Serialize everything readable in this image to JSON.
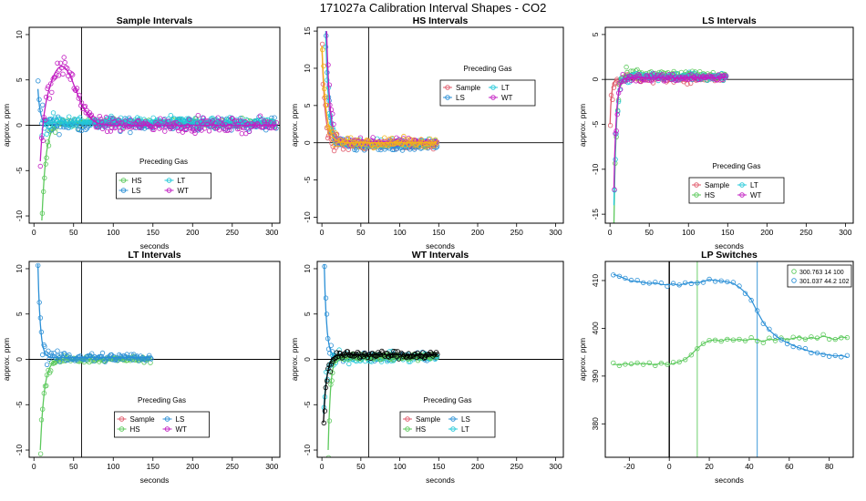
{
  "figure": {
    "title": "171027a   Calibration Interval Shapes - CO2"
  },
  "colors": {
    "Sample": "#e05a6b",
    "HS": "#5cc95c",
    "LS": "#2a8fd6",
    "LT": "#22c8d8",
    "WT": "#c21ec2",
    "HSmix": "#f2b21a",
    "black": "#000000"
  },
  "chart_data": [
    {
      "type": "scatter",
      "title": "Sample Intervals",
      "xlabel": "seconds",
      "ylabel": "approx. ppm",
      "xlim": [
        -6,
        310
      ],
      "ylim": [
        -10.8,
        10.8
      ],
      "xticks": [
        0,
        50,
        100,
        150,
        200,
        250,
        300
      ],
      "yticks": [
        -10,
        -5,
        0,
        5,
        10
      ],
      "vline": [
        60
      ],
      "hline": [
        0
      ],
      "legend": {
        "title": "Preceding Gas",
        "entries": [
          "HS",
          "LT",
          "LS",
          "WT"
        ],
        "position": "bottom-center"
      },
      "series": [
        {
          "name": "HS",
          "color": "HS",
          "start": -10.5,
          "settle": 0.25,
          "tau": 5,
          "noise": 0.45,
          "tmax": 305,
          "t0": 10
        },
        {
          "name": "LS",
          "color": "LS",
          "start": 4,
          "settle": 0.1,
          "tau": 3,
          "noise": 0.7,
          "tmax": 305,
          "t0": 5
        },
        {
          "name": "LT",
          "color": "LT",
          "start": -0.5,
          "settle": 0.35,
          "tau": 4,
          "noise": 0.55,
          "tmax": 305,
          "t0": 10
        },
        {
          "name": "WT",
          "color": "WT",
          "start": -6,
          "settle": 0,
          "tau": 4,
          "noise": 0.75,
          "tmax": 305,
          "t0": 8,
          "bump": {
            "center": 35,
            "height": 6.5,
            "width": 25
          }
        }
      ]
    },
    {
      "type": "scatter",
      "title": "HS Intervals",
      "xlabel": "seconds",
      "ylabel": "approx. ppm",
      "xlim": [
        -6,
        310
      ],
      "ylim": [
        -10.8,
        15.5
      ],
      "xticks": [
        0,
        50,
        100,
        150,
        200,
        250,
        300
      ],
      "yticks": [
        -10,
        -5,
        0,
        5,
        10,
        15
      ],
      "vline": [
        60
      ],
      "hline": [
        0
      ],
      "legend": {
        "title": "Preceding Gas",
        "entries": [
          "Sample",
          "LT",
          "LS",
          "WT"
        ],
        "position": "top-right"
      },
      "series": [
        {
          "name": "Sample",
          "color": "Sample",
          "start": 13,
          "settle": -0.3,
          "tau": 4,
          "noise": 0.55,
          "tmax": 148,
          "t0": 0
        },
        {
          "name": "LS",
          "color": "LS",
          "start": 15,
          "settle": -0.5,
          "tau": 4,
          "noise": 0.55,
          "tmax": 148,
          "t0": 5
        },
        {
          "name": "LT",
          "color": "LT",
          "start": 14,
          "settle": 0,
          "tau": 4,
          "noise": 0.5,
          "tmax": 148,
          "t0": 5
        },
        {
          "name": "WT",
          "color": "WT",
          "start": 15,
          "settle": 0.1,
          "tau": 4,
          "noise": 0.5,
          "tmax": 148,
          "t0": 6
        },
        {
          "name": "Mix",
          "color": "HSmix",
          "start": 13,
          "settle": 0,
          "tau": 5,
          "noise": 0.6,
          "tmax": 148,
          "t0": 0
        }
      ]
    },
    {
      "type": "scatter",
      "title": "LS Intervals",
      "xlabel": "seconds",
      "ylabel": "approx. ppm",
      "xlim": [
        -6,
        310
      ],
      "ylim": [
        -16,
        5.8
      ],
      "xticks": [
        0,
        50,
        100,
        150,
        200,
        250,
        300
      ],
      "yticks": [
        -15,
        -10,
        -5,
        0,
        5
      ],
      "vline": [],
      "hline": [
        0
      ],
      "legend": {
        "title": "Preceding Gas",
        "entries": [
          "Sample",
          "LT",
          "HS",
          "WT"
        ],
        "position": "bottom-right"
      },
      "series": [
        {
          "name": "Sample",
          "color": "Sample",
          "start": -5,
          "settle": 0.1,
          "tau": 2,
          "noise": 0.5,
          "tmax": 148,
          "t0": 0
        },
        {
          "name": "HS",
          "color": "HS",
          "start": -16,
          "settle": 0.5,
          "tau": 3,
          "noise": 0.45,
          "tmax": 148,
          "t0": 5
        },
        {
          "name": "LT",
          "color": "LT",
          "start": -14,
          "settle": 0.3,
          "tau": 3,
          "noise": 0.45,
          "tmax": 148,
          "t0": 5
        },
        {
          "name": "WT",
          "color": "WT",
          "start": -12,
          "settle": 0.2,
          "tau": 3,
          "noise": 0.45,
          "tmax": 148,
          "t0": 5
        }
      ]
    },
    {
      "type": "scatter",
      "title": "LT Intervals",
      "xlabel": "seconds",
      "ylabel": "approx. ppm",
      "xlim": [
        -6,
        310
      ],
      "ylim": [
        -10.8,
        10.8
      ],
      "xticks": [
        0,
        50,
        100,
        150,
        200,
        250,
        300
      ],
      "yticks": [
        -10,
        -5,
        0,
        5,
        10
      ],
      "vline": [
        60
      ],
      "hline": [
        0
      ],
      "legend": {
        "title": "Preceding Gas",
        "entries": [
          "Sample",
          "LS",
          "HS",
          "WT"
        ],
        "position": "bottom-right"
      },
      "series": [
        {
          "name": "HS",
          "color": "HS",
          "start": -10,
          "settle": 0,
          "tau": 5,
          "noise": 0.3,
          "tmax": 148,
          "t0": 8
        },
        {
          "name": "LS",
          "color": "LS",
          "start": 10.5,
          "settle": 0.2,
          "tau": 3,
          "noise": 0.55,
          "tmax": 148,
          "t0": 5
        }
      ]
    },
    {
      "type": "scatter",
      "title": "WT Intervals",
      "xlabel": "seconds",
      "ylabel": "approx. ppm",
      "xlim": [
        -6,
        310
      ],
      "ylim": [
        -10.8,
        10.8
      ],
      "xticks": [
        0,
        50,
        100,
        150,
        200,
        250,
        300
      ],
      "yticks": [
        -10,
        -5,
        0,
        5,
        10
      ],
      "vline": [
        60
      ],
      "hline": [
        0
      ],
      "legend": {
        "title": "Preceding Gas",
        "entries": [
          "Sample",
          "LS",
          "HS",
          "LT"
        ],
        "position": "bottom-right"
      },
      "series": [
        {
          "name": "LS",
          "color": "LS",
          "start": 10.5,
          "settle": 0.3,
          "tau": 3,
          "noise": 0.4,
          "tmax": 148,
          "t0": 3
        },
        {
          "name": "LT",
          "color": "LT",
          "start": -6,
          "settle": 0.2,
          "tau": 4,
          "noise": 0.5,
          "tmax": 148,
          "t0": 2
        },
        {
          "name": "HS",
          "color": "HS",
          "start": -10,
          "settle": 0.3,
          "tau": 3,
          "noise": 0.35,
          "tmax": 148,
          "t0": 8
        },
        {
          "name": "Other",
          "color": "black",
          "start": -7,
          "settle": 0.5,
          "tau": 4,
          "noise": 0.4,
          "tmax": 148,
          "t0": 2
        }
      ]
    },
    {
      "type": "line",
      "title": "LP Switches",
      "xlabel": "seconds",
      "ylabel": "approx. ppm",
      "xlim": [
        -32,
        92
      ],
      "ylim": [
        373,
        414
      ],
      "xticks": [
        -20,
        0,
        20,
        40,
        60,
        80
      ],
      "yticks": [
        380,
        390,
        400,
        410
      ],
      "vlines": [
        {
          "x": 0,
          "color": "black"
        },
        {
          "x": 14,
          "color": "HS"
        },
        {
          "x": 44,
          "color": "LS"
        }
      ],
      "legend": {
        "entries": [
          "300.763 14 100",
          "301.037 44.2 102"
        ],
        "position": "top-right"
      },
      "series": [
        {
          "name": "300.763 14 100",
          "color": "HS",
          "x": [
            -28,
            -25,
            -22,
            -19,
            -16,
            -13,
            -10,
            -7,
            -4,
            -1,
            2,
            5,
            8,
            11,
            14,
            17,
            20,
            23,
            26,
            29,
            32,
            35,
            38,
            41,
            44,
            47,
            50,
            53,
            56,
            59,
            62,
            65,
            68,
            71,
            74,
            77,
            80,
            83,
            86,
            89
          ],
          "y": [
            392.5,
            392.3,
            392.6,
            392.4,
            392.7,
            392.5,
            392.6,
            392.3,
            392.8,
            392.4,
            392.6,
            393.0,
            393.5,
            394.5,
            395.8,
            396.8,
            397.4,
            397.6,
            397.3,
            397.8,
            397.5,
            397.7,
            397.4,
            397.8,
            397.6,
            397.2,
            397.8,
            397.5,
            398.0,
            397.6,
            397.9,
            398.2,
            397.7,
            398.1,
            397.8,
            398.4,
            398.0,
            397.6,
            398.2,
            398.0
          ]
        },
        {
          "name": "301.037 44.2 102",
          "color": "LS",
          "x": [
            -28,
            -25,
            -22,
            -19,
            -16,
            -13,
            -10,
            -7,
            -4,
            -1,
            2,
            5,
            8,
            11,
            14,
            17,
            20,
            23,
            26,
            29,
            32,
            35,
            38,
            41,
            44,
            47,
            50,
            53,
            56,
            59,
            62,
            65,
            68,
            71,
            74,
            77,
            80,
            83,
            86,
            89
          ],
          "y": [
            411.3,
            410.9,
            410.4,
            409.9,
            409.8,
            409.6,
            409.4,
            409.5,
            409.2,
            409.1,
            409.3,
            409.0,
            409.4,
            409.6,
            409.5,
            409.8,
            410.2,
            410.0,
            409.9,
            409.7,
            409.4,
            408.6,
            407.5,
            406.0,
            403.5,
            401.2,
            399.6,
            398.5,
            397.6,
            397.0,
            396.4,
            395.9,
            395.5,
            395.1,
            394.8,
            394.6,
            394.4,
            394.2,
            394.3,
            394.0
          ]
        }
      ]
    }
  ]
}
